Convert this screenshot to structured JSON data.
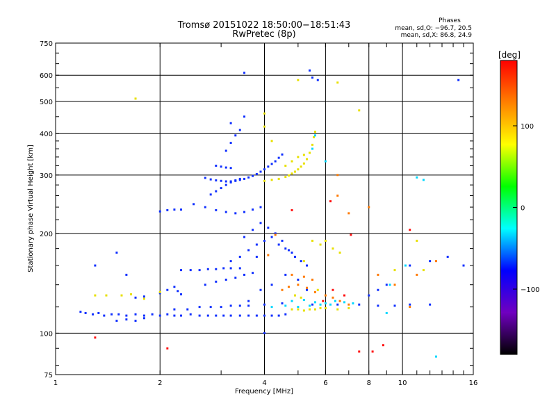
{
  "chart_data": {
    "type": "scatter",
    "title": "Tromsø 20151022 18:50:00−18:51:43",
    "subtitle": "RwPretec (8p)",
    "xlabel": "Frequency [MHz]",
    "ylabel": "Stationary phase Virtual Height [km]",
    "x_scale": "log",
    "y_scale": "log",
    "xlim": [
      1,
      16
    ],
    "ylim": [
      75,
      750
    ],
    "x_ticks": [
      "1",
      "2",
      "4",
      "6",
      "8",
      "10",
      "16"
    ],
    "y_ticks": [
      "75",
      "100",
      "200",
      "300",
      "400",
      "500",
      "600",
      "750"
    ],
    "x_gridlines": [
      2,
      4,
      6,
      8,
      10
    ],
    "y_gridlines": [
      100,
      200,
      300,
      400,
      500,
      600
    ],
    "grid": true,
    "legend_placement": "top-right",
    "phases_header": "Phases",
    "phase_stats": [
      "mean, sd,O: −96.7, 20.5",
      "mean, sd,X: 86.8, 24.9"
    ],
    "colorbar": {
      "label": "[deg]",
      "ticks": [
        "100",
        "0",
        "−100"
      ],
      "range": [
        -180,
        180
      ],
      "colors": [
        "#ff0000",
        "#ff8000",
        "#ffff00",
        "#00ff00",
        "#00ffff",
        "#0000ff",
        "#7000c0",
        "#000000"
      ]
    },
    "series": [
      {
        "points": [
          [
            1.18,
            116
          ],
          [
            1.22,
            115
          ],
          [
            1.28,
            114
          ],
          [
            1.33,
            115
          ],
          [
            1.38,
            113
          ],
          [
            1.45,
            114
          ],
          [
            1.52,
            114
          ],
          [
            1.6,
            113
          ],
          [
            1.7,
            114
          ],
          [
            1.8,
            113
          ],
          [
            1.9,
            114
          ],
          [
            2.0,
            113
          ],
          [
            2.1,
            114
          ],
          [
            2.2,
            113
          ],
          [
            2.3,
            113
          ],
          [
            2.45,
            114
          ],
          [
            2.6,
            113
          ],
          [
            2.75,
            113
          ],
          [
            2.9,
            113
          ],
          [
            3.05,
            113
          ],
          [
            3.2,
            113
          ],
          [
            3.4,
            113
          ],
          [
            3.6,
            113
          ],
          [
            3.8,
            113
          ],
          [
            4.0,
            113
          ],
          [
            4.2,
            113
          ],
          [
            4.4,
            113
          ],
          [
            4.6,
            114
          ],
          [
            1.5,
            109
          ],
          [
            1.6,
            110
          ],
          [
            1.7,
            109
          ],
          [
            1.8,
            111
          ],
          [
            2.2,
            118
          ],
          [
            2.4,
            118
          ],
          [
            2.6,
            120
          ],
          [
            2.8,
            120
          ],
          [
            3.0,
            120
          ],
          [
            3.2,
            121
          ],
          [
            3.4,
            121
          ],
          [
            3.6,
            121
          ],
          [
            4.0,
            122
          ],
          [
            4.5,
            123
          ],
          [
            5.5,
            122
          ],
          [
            6.5,
            122
          ],
          [
            7.5,
            122
          ],
          [
            8.5,
            121
          ],
          [
            9.5,
            121
          ],
          [
            10.5,
            122
          ],
          [
            12,
            122
          ],
          [
            1.7,
            128
          ],
          [
            1.8,
            129
          ],
          [
            2.0,
            132
          ],
          [
            2.1,
            135
          ],
          [
            2.2,
            138
          ],
          [
            2.25,
            134
          ],
          [
            2.3,
            131
          ],
          [
            2.3,
            155
          ],
          [
            2.45,
            155
          ],
          [
            2.6,
            155
          ],
          [
            2.75,
            156
          ],
          [
            2.9,
            156
          ],
          [
            3.05,
            157
          ],
          [
            3.2,
            157
          ],
          [
            3.4,
            157
          ],
          [
            2.7,
            140
          ],
          [
            2.9,
            143
          ],
          [
            3.1,
            145
          ],
          [
            3.3,
            147
          ],
          [
            3.5,
            150
          ],
          [
            3.7,
            152
          ],
          [
            3.2,
            165
          ],
          [
            3.4,
            170
          ],
          [
            3.6,
            178
          ],
          [
            3.8,
            185
          ],
          [
            4.0,
            190
          ],
          [
            4.2,
            195
          ],
          [
            4.4,
            185
          ],
          [
            4.6,
            180
          ],
          [
            4.8,
            175
          ],
          [
            3.5,
            195
          ],
          [
            3.7,
            205
          ],
          [
            3.9,
            215
          ],
          [
            4.1,
            208
          ],
          [
            4.3,
            200
          ],
          [
            4.5,
            190
          ],
          [
            4.7,
            178
          ],
          [
            4.9,
            170
          ],
          [
            5.1,
            165
          ],
          [
            5.3,
            160
          ],
          [
            2.0,
            233
          ],
          [
            2.1,
            235
          ],
          [
            2.2,
            236
          ],
          [
            2.3,
            236
          ],
          [
            2.5,
            245
          ],
          [
            2.7,
            240
          ],
          [
            2.9,
            235
          ],
          [
            3.1,
            232
          ],
          [
            3.3,
            230
          ],
          [
            3.5,
            232
          ],
          [
            3.7,
            236
          ],
          [
            3.9,
            240
          ],
          [
            2.8,
            262
          ],
          [
            2.9,
            268
          ],
          [
            3.0,
            274
          ],
          [
            3.1,
            280
          ],
          [
            3.2,
            285
          ],
          [
            3.3,
            289
          ],
          [
            3.4,
            292
          ],
          [
            2.7,
            294
          ],
          [
            2.8,
            291
          ],
          [
            2.9,
            289
          ],
          [
            3.0,
            288
          ],
          [
            3.1,
            287
          ],
          [
            3.2,
            287
          ],
          [
            3.3,
            288
          ],
          [
            3.4,
            290
          ],
          [
            3.5,
            292
          ],
          [
            3.6,
            295
          ],
          [
            3.7,
            298
          ],
          [
            3.8,
            302
          ],
          [
            3.9,
            307
          ],
          [
            4.0,
            312
          ],
          [
            4.1,
            318
          ],
          [
            4.2,
            324
          ],
          [
            4.3,
            330
          ],
          [
            4.4,
            338
          ],
          [
            4.5,
            346
          ],
          [
            2.9,
            320
          ],
          [
            3.0,
            318
          ],
          [
            3.1,
            316
          ],
          [
            3.2,
            315
          ],
          [
            3.1,
            355
          ],
          [
            3.2,
            375
          ],
          [
            3.3,
            395
          ],
          [
            3.4,
            410
          ],
          [
            3.2,
            430
          ],
          [
            3.5,
            450
          ],
          [
            1.3,
            160
          ],
          [
            1.5,
            175
          ],
          [
            1.6,
            150
          ],
          [
            3.5,
            610
          ],
          [
            5.5,
            590
          ],
          [
            5.7,
            580
          ],
          [
            5.4,
            620
          ],
          [
            14.5,
            580
          ],
          [
            4.0,
            100
          ],
          [
            3.8,
            170
          ],
          [
            4.2,
            140
          ],
          [
            4.6,
            150
          ],
          [
            5.0,
            145
          ],
          [
            5.3,
            135
          ],
          [
            8.0,
            130
          ],
          [
            8.5,
            135
          ],
          [
            9.0,
            140
          ],
          [
            10.5,
            160
          ],
          [
            12.0,
            165
          ],
          [
            13.5,
            170
          ],
          [
            15.0,
            160
          ],
          [
            3.6,
            125
          ],
          [
            3.9,
            135
          ]
        ]
      },
      {
        "points": [
          [
            4.6,
            296
          ],
          [
            4.7,
            299
          ],
          [
            4.8,
            303
          ],
          [
            4.9,
            307
          ],
          [
            5.0,
            312
          ],
          [
            5.1,
            318
          ],
          [
            5.2,
            325
          ],
          [
            5.3,
            335
          ],
          [
            5.4,
            350
          ],
          [
            5.5,
            370
          ],
          [
            5.55,
            390
          ],
          [
            5.6,
            405
          ],
          [
            4.6,
            320
          ],
          [
            4.8,
            330
          ],
          [
            5.0,
            340
          ],
          [
            5.2,
            345
          ],
          [
            4.0,
            288
          ],
          [
            4.2,
            290
          ],
          [
            4.4,
            292
          ],
          [
            4.8,
            118
          ],
          [
            5.0,
            118
          ],
          [
            5.2,
            117
          ],
          [
            5.4,
            118
          ],
          [
            5.6,
            118
          ],
          [
            5.8,
            119
          ],
          [
            6.0,
            119
          ],
          [
            6.5,
            118
          ],
          [
            7.0,
            119
          ],
          [
            5.5,
            190
          ],
          [
            5.8,
            185
          ],
          [
            6.0,
            190
          ],
          [
            6.3,
            180
          ],
          [
            6.6,
            175
          ],
          [
            5.2,
            165
          ],
          [
            5.7,
            135
          ],
          [
            4.2,
            380
          ],
          [
            4.0,
            460
          ],
          [
            4.0,
            420
          ],
          [
            5.0,
            580
          ],
          [
            6.5,
            570
          ],
          [
            7.5,
            470
          ],
          [
            11,
            190
          ],
          [
            11.5,
            155
          ],
          [
            9.5,
            155
          ],
          [
            1.3,
            130
          ],
          [
            1.4,
            130
          ],
          [
            1.55,
            130
          ],
          [
            1.65,
            131
          ],
          [
            1.8,
            127
          ],
          [
            2.0,
            133
          ],
          [
            1.7,
            510
          ],
          [
            4.9,
            130
          ],
          [
            5.1,
            128
          ]
        ]
      },
      {
        "points": [
          [
            4.8,
            125
          ],
          [
            5.2,
            126
          ],
          [
            5.6,
            124
          ],
          [
            6.0,
            123
          ],
          [
            6.4,
            125
          ],
          [
            6.8,
            124
          ],
          [
            7.2,
            123
          ],
          [
            4.2,
            120
          ],
          [
            4.6,
            121
          ],
          [
            5.0,
            120
          ],
          [
            5.4,
            121
          ],
          [
            5.8,
            122
          ],
          [
            6.2,
            122
          ],
          [
            5.5,
            360
          ],
          [
            5.6,
            395
          ],
          [
            9.0,
            115
          ],
          [
            9.2,
            140
          ],
          [
            10.2,
            160
          ],
          [
            11,
            295
          ],
          [
            11.5,
            290
          ],
          [
            12.5,
            85
          ],
          [
            6.0,
            330
          ]
        ]
      },
      {
        "points": [
          [
            4.5,
            135
          ],
          [
            4.7,
            138
          ],
          [
            5.0,
            140
          ],
          [
            5.3,
            137
          ],
          [
            5.6,
            133
          ],
          [
            6.0,
            130
          ],
          [
            6.3,
            128
          ],
          [
            4.8,
            150
          ],
          [
            5.2,
            148
          ],
          [
            5.5,
            145
          ],
          [
            6.5,
            300
          ],
          [
            6.5,
            260
          ],
          [
            7.0,
            230
          ],
          [
            8.0,
            240
          ],
          [
            10.5,
            120
          ],
          [
            11,
            150
          ],
          [
            12.5,
            165
          ],
          [
            9.5,
            140
          ],
          [
            8.5,
            150
          ],
          [
            6.6,
            125
          ],
          [
            7.0,
            122
          ],
          [
            4.3,
            198
          ],
          [
            4.1,
            172
          ]
        ]
      },
      {
        "points": [
          [
            2.1,
            90
          ],
          [
            1.3,
            97
          ],
          [
            4.8,
            235
          ],
          [
            6.2,
            250
          ],
          [
            7.1,
            198
          ],
          [
            8.2,
            88
          ],
          [
            8.8,
            92
          ],
          [
            10.5,
            205
          ],
          [
            7.5,
            88
          ],
          [
            5.9,
            125
          ],
          [
            6.3,
            135
          ],
          [
            6.8,
            130
          ]
        ]
      }
    ]
  }
}
